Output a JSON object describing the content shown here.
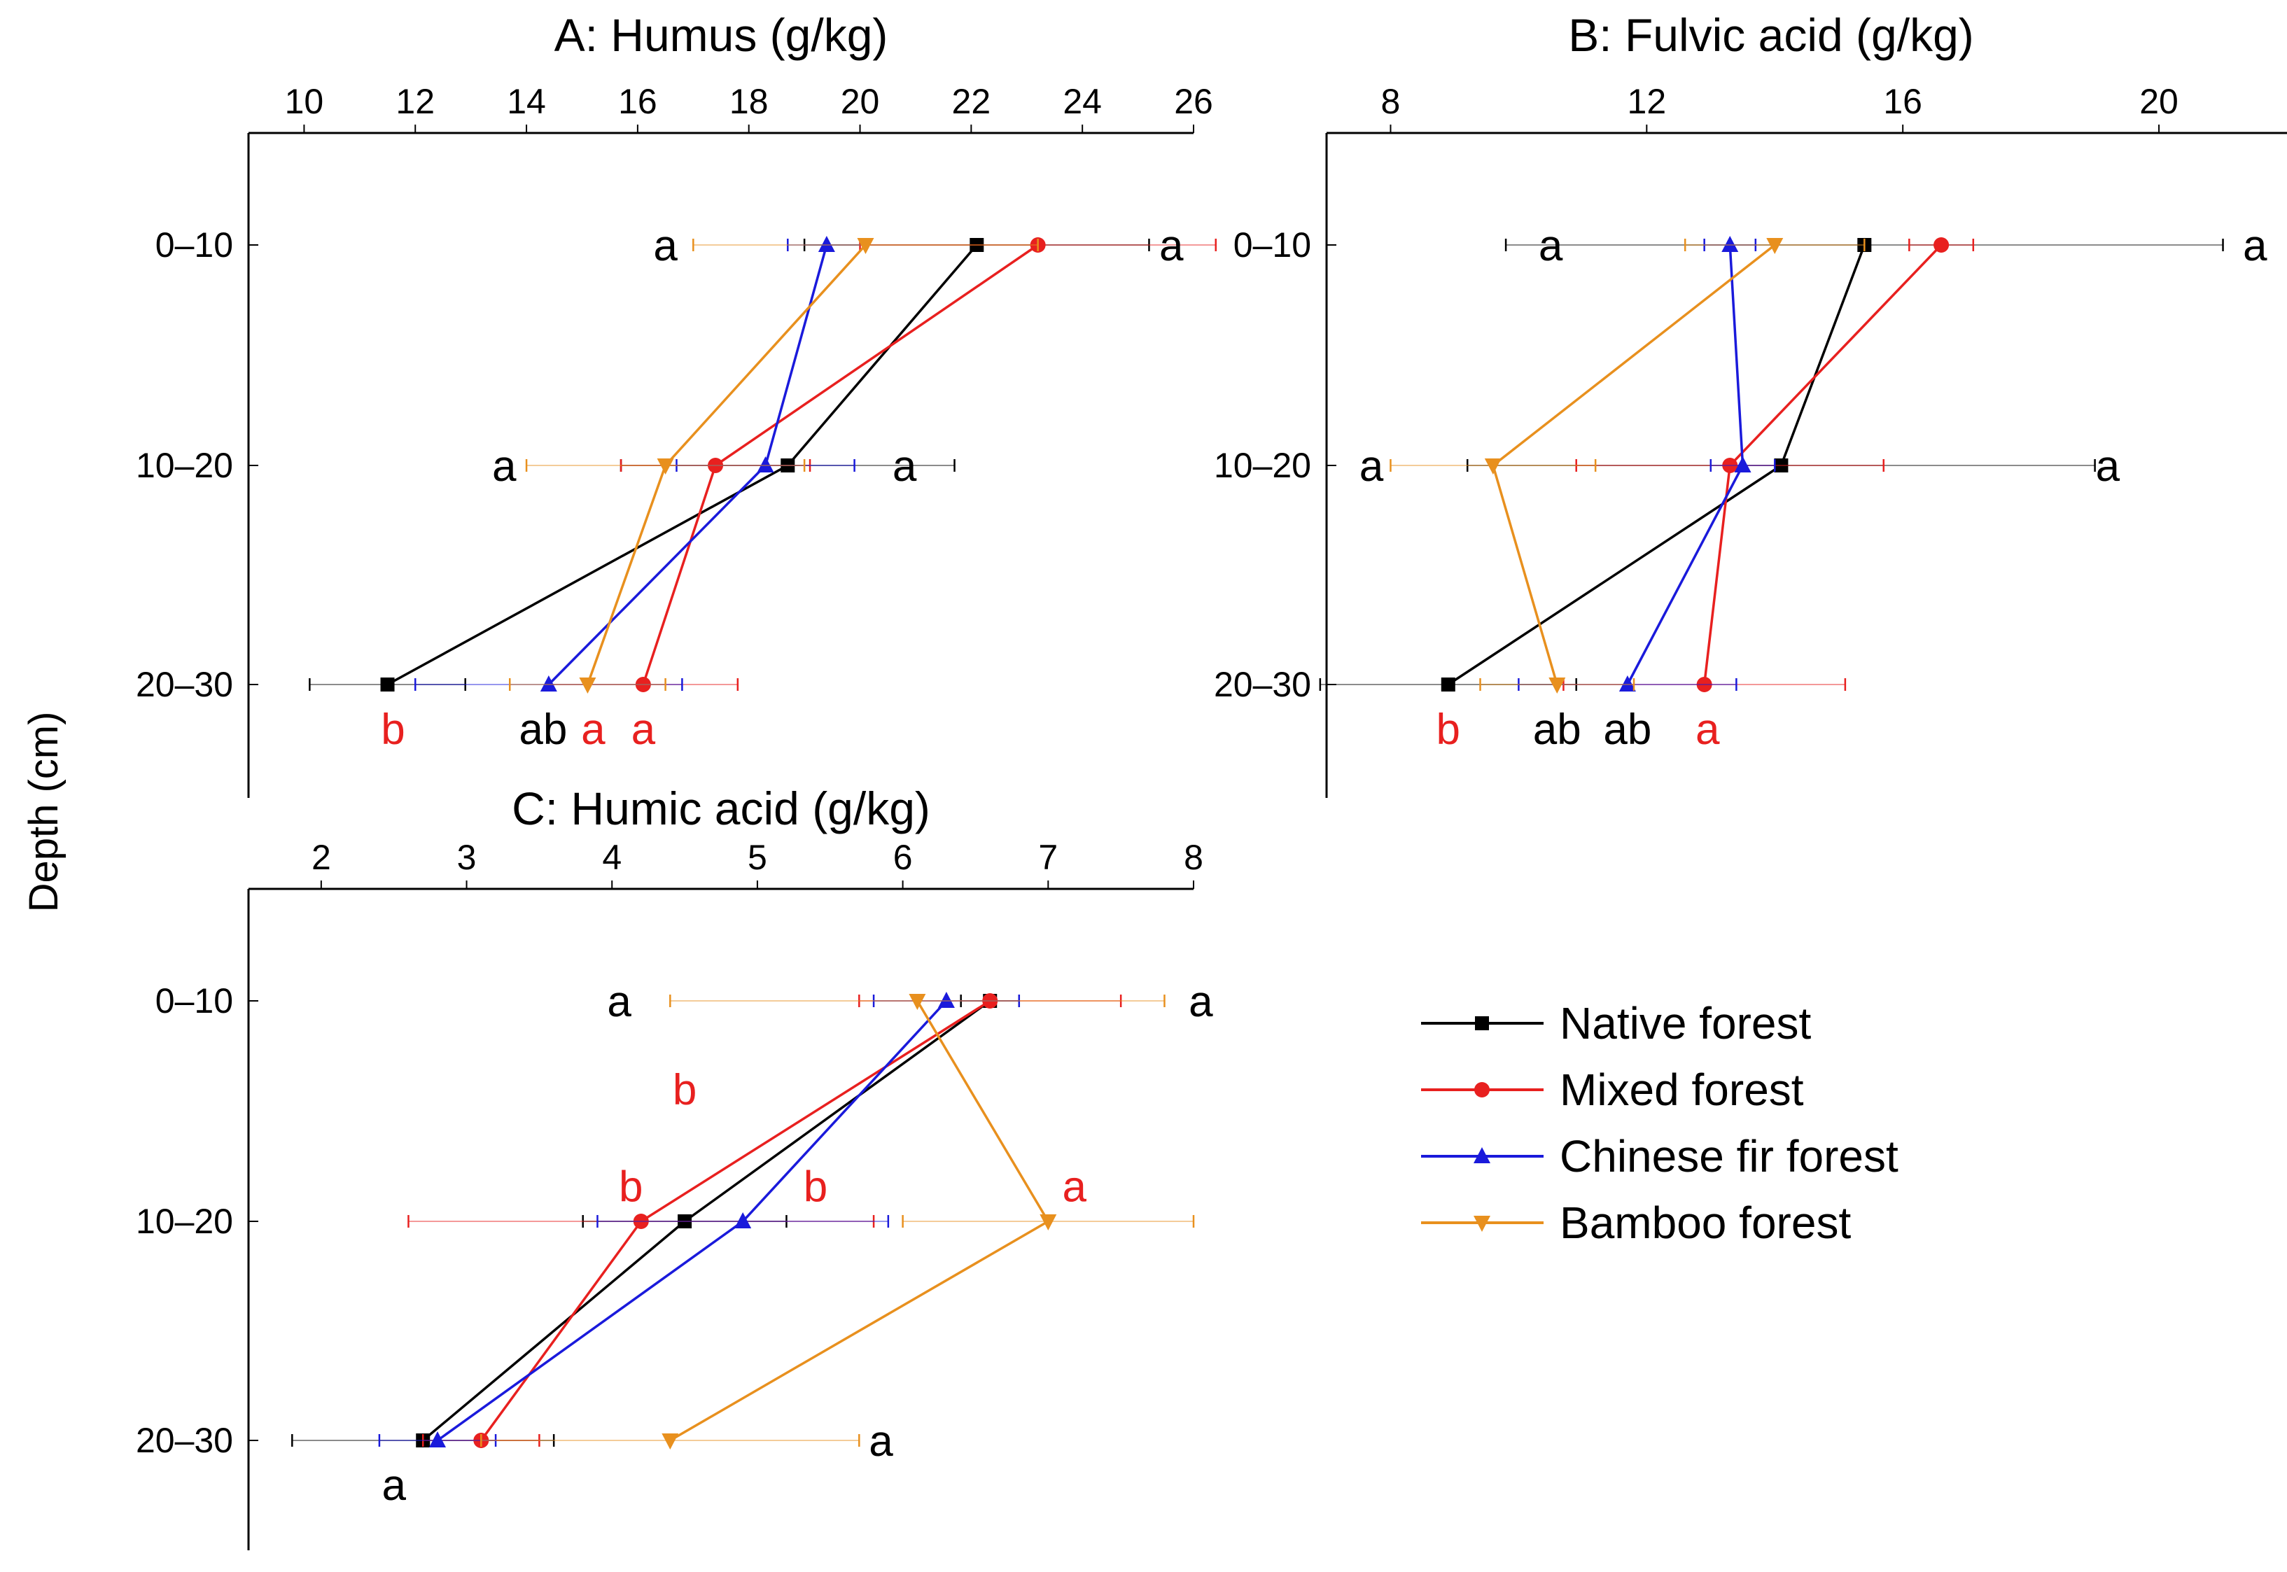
{
  "figure": {
    "ylabel": "Depth (cm)"
  },
  "depth_labels": [
    "0–10",
    "10–20",
    "20–30"
  ],
  "legend": [
    {
      "key": "native",
      "label": "Native forest",
      "color": "#000000",
      "marker": "square"
    },
    {
      "key": "mixed",
      "label": "Mixed forest",
      "color": "#e8201f",
      "marker": "circle"
    },
    {
      "key": "fir",
      "label": "Chinese fir forest",
      "color": "#1a1adb",
      "marker": "triangle-up"
    },
    {
      "key": "bamboo",
      "label": "Bamboo forest",
      "color": "#e8901e",
      "marker": "triangle-down"
    }
  ],
  "chart_data": [
    {
      "id": "A",
      "type": "line",
      "title": "A: Humus (g/kg)",
      "xlabel": "Humus (g/kg)",
      "ylabel": "Depth (cm)",
      "xlim": [
        9,
        26
      ],
      "xticks": [
        10,
        12,
        14,
        16,
        18,
        20,
        22,
        24,
        26
      ],
      "categories": [
        "0–10",
        "10–20",
        "20–30"
      ],
      "series": [
        {
          "name": "Native forest",
          "values": [
            22.1,
            18.7,
            11.5
          ],
          "errors": [
            3.1,
            3.0,
            1.4
          ]
        },
        {
          "name": "Mixed forest",
          "values": [
            23.2,
            17.4,
            16.1
          ],
          "errors": [
            3.2,
            1.7,
            1.7
          ]
        },
        {
          "name": "Chinese fir forest",
          "values": [
            19.4,
            18.3,
            14.4
          ],
          "errors": [
            0.7,
            1.6,
            2.4
          ]
        },
        {
          "name": "Bamboo forest",
          "values": [
            20.1,
            16.5,
            15.1
          ],
          "errors": [
            3.1,
            2.5,
            1.4
          ]
        }
      ],
      "annotations": [
        {
          "text": "a",
          "x": 16.5,
          "depth": "0–10",
          "color": "#000000"
        },
        {
          "text": "a",
          "x": 25.6,
          "depth": "0–10",
          "color": "#000000"
        },
        {
          "text": "a",
          "x": 13.6,
          "depth": "10–20",
          "color": "#000000"
        },
        {
          "text": "a",
          "x": 20.8,
          "depth": "10–20",
          "color": "#000000"
        },
        {
          "text": "b",
          "x": 11.6,
          "depth": "20–30",
          "color": "#e8201f",
          "below": true
        },
        {
          "text": "ab",
          "x": 14.3,
          "depth": "20–30",
          "color": "#000000",
          "below": true
        },
        {
          "text": "a",
          "x": 15.2,
          "depth": "20–30",
          "color": "#e8201f",
          "below": true
        },
        {
          "text": "a",
          "x": 16.1,
          "depth": "20–30",
          "color": "#e8201f",
          "below": true
        }
      ]
    },
    {
      "id": "B",
      "type": "line",
      "title": "B: Fulvic acid (g/kg)",
      "xlabel": "Fulvic acid (g/kg)",
      "ylabel": "Depth (cm)",
      "xlim": [
        7,
        22
      ],
      "xticks": [
        8,
        12,
        16,
        20
      ],
      "categories": [
        "0–10",
        "10–20",
        "20–30"
      ],
      "series": [
        {
          "name": "Native forest",
          "values": [
            15.4,
            14.1,
            8.9
          ],
          "errors": [
            5.6,
            4.9,
            2.0
          ]
        },
        {
          "name": "Mixed forest",
          "values": [
            16.6,
            13.3,
            12.9
          ],
          "errors": [
            0.5,
            2.4,
            2.2
          ]
        },
        {
          "name": "Chinese fir forest",
          "values": [
            13.3,
            13.5,
            11.7
          ],
          "errors": [
            0.4,
            0.5,
            1.7
          ]
        },
        {
          "name": "Bamboo forest",
          "values": [
            14.0,
            9.6,
            10.6
          ],
          "errors": [
            1.4,
            1.6,
            1.2
          ]
        }
      ],
      "annotations": [
        {
          "text": "a",
          "x": 10.5,
          "depth": "0–10",
          "color": "#000000"
        },
        {
          "text": "a",
          "x": 21.5,
          "depth": "0–10",
          "color": "#000000"
        },
        {
          "text": "a",
          "x": 7.7,
          "depth": "10–20",
          "color": "#000000"
        },
        {
          "text": "a",
          "x": 19.2,
          "depth": "10–20",
          "color": "#000000"
        },
        {
          "text": "b",
          "x": 8.9,
          "depth": "20–30",
          "color": "#e8201f",
          "below": true
        },
        {
          "text": "ab",
          "x": 10.6,
          "depth": "20–30",
          "color": "#000000",
          "below": true
        },
        {
          "text": "ab",
          "x": 11.7,
          "depth": "20–30",
          "color": "#000000",
          "below": true
        },
        {
          "text": "a",
          "x": 12.95,
          "depth": "20–30",
          "color": "#e8201f",
          "below": true
        }
      ]
    },
    {
      "id": "C",
      "type": "line",
      "title": "C: Humic acid (g/kg)",
      "xlabel": "Humic acid (g/kg)",
      "ylabel": "Depth (cm)",
      "xlim": [
        1.5,
        8
      ],
      "xticks": [
        2,
        3,
        4,
        5,
        6,
        7,
        8
      ],
      "categories": [
        "0–10",
        "10–20",
        "20–30"
      ],
      "series": [
        {
          "name": "Native forest",
          "values": [
            6.6,
            4.5,
            2.7
          ],
          "errors": [
            0.2,
            0.7,
            0.9
          ]
        },
        {
          "name": "Mixed forest",
          "values": [
            6.6,
            4.2,
            3.1
          ],
          "errors": [
            0.9,
            1.6,
            0.4
          ]
        },
        {
          "name": "Chinese fir forest",
          "values": [
            6.3,
            4.9,
            2.8
          ],
          "errors": [
            0.5,
            1.0,
            0.4
          ]
        },
        {
          "name": "Bamboo forest",
          "values": [
            6.1,
            7.0,
            4.4
          ],
          "errors": [
            1.7,
            1.0,
            1.3
          ]
        }
      ],
      "annotations": [
        {
          "text": "a",
          "x": 4.05,
          "depth": "0–10",
          "color": "#000000"
        },
        {
          "text": "a",
          "x": 8.05,
          "depth": "0–10",
          "color": "#000000"
        },
        {
          "text": "b",
          "x": 4.5,
          "depth": "10–20",
          "color": "#e8201f",
          "yoff": -0.6
        },
        {
          "text": "b",
          "x": 4.13,
          "depth": "10–20",
          "color": "#e8201f",
          "yoff": -0.16
        },
        {
          "text": "b",
          "x": 5.4,
          "depth": "10–20",
          "color": "#e8201f",
          "yoff": -0.16
        },
        {
          "text": "a",
          "x": 7.18,
          "depth": "10–20",
          "color": "#e8201f",
          "yoff": -0.16
        },
        {
          "text": "a",
          "x": 5.85,
          "depth": "20–30",
          "color": "#000000"
        },
        {
          "text": "a",
          "x": 2.5,
          "depth": "20–30",
          "color": "#000000",
          "below": true
        }
      ]
    }
  ]
}
